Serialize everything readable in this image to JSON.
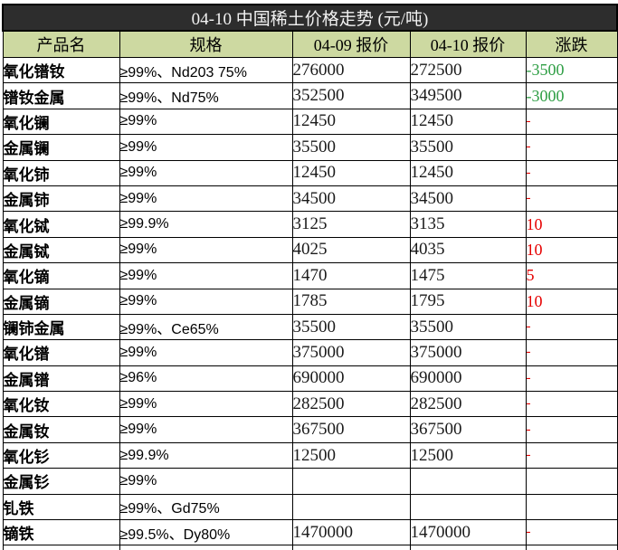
{
  "title": "04-10 中国稀土价格走势 (元/吨)",
  "columns": [
    "产品名",
    "规格",
    "04-09 报价",
    "04-10 报价",
    "涨跌"
  ],
  "rows": [
    {
      "name": "氧化镨钕",
      "spec": "≥99%、Nd203 75%",
      "price_0409": "276000",
      "price_0410": "272500",
      "change": "-3500",
      "direction": "down"
    },
    {
      "name": "镨钕金属",
      "spec": "≥99%、Nd75%",
      "price_0409": "352500",
      "price_0410": "349500",
      "change": "-3000",
      "direction": "down"
    },
    {
      "name": "氧化镧",
      "spec": "≥99%",
      "price_0409": "12450",
      "price_0410": "12450",
      "change": "-",
      "direction": "flat"
    },
    {
      "name": "金属镧",
      "spec": "≥99%",
      "price_0409": "35500",
      "price_0410": "35500",
      "change": "-",
      "direction": "flat"
    },
    {
      "name": "氧化铈",
      "spec": "≥99%",
      "price_0409": "12450",
      "price_0410": "12450",
      "change": "-",
      "direction": "flat"
    },
    {
      "name": "金属铈",
      "spec": "≥99%",
      "price_0409": "34500",
      "price_0410": "34500",
      "change": "-",
      "direction": "flat"
    },
    {
      "name": "氧化铽",
      "spec": "≥99.9%",
      "price_0409": "3125",
      "price_0410": "3135",
      "change": "10",
      "direction": "up"
    },
    {
      "name": "金属铽",
      "spec": "≥99%",
      "price_0409": "4025",
      "price_0410": "4035",
      "change": "10",
      "direction": "up"
    },
    {
      "name": "氧化镝",
      "spec": "≥99%",
      "price_0409": "1470",
      "price_0410": "1475",
      "change": "5",
      "direction": "up"
    },
    {
      "name": "金属镝",
      "spec": "≥99%",
      "price_0409": "1785",
      "price_0410": "1795",
      "change": "10",
      "direction": "up"
    },
    {
      "name": "镧铈金属",
      "spec": "≥99%、Ce65%",
      "price_0409": "35500",
      "price_0410": "35500",
      "change": "-",
      "direction": "flat"
    },
    {
      "name": "氧化镨",
      "spec": "≥99%",
      "price_0409": "375000",
      "price_0410": "375000",
      "change": "-",
      "direction": "flat"
    },
    {
      "name": "金属镨",
      "spec": "≥96%",
      "price_0409": "690000",
      "price_0410": "690000",
      "change": "-",
      "direction": "flat"
    },
    {
      "name": "氧化钕",
      "spec": "≥99%",
      "price_0409": "282500",
      "price_0410": "282500",
      "change": "-",
      "direction": "flat"
    },
    {
      "name": "金属钕",
      "spec": "≥99%",
      "price_0409": "367500",
      "price_0410": "367500",
      "change": "-",
      "direction": "flat"
    },
    {
      "name": "氧化钐",
      "spec": "≥99.9%",
      "price_0409": "12500",
      "price_0410": "12500",
      "change": "-",
      "direction": "flat"
    },
    {
      "name": "金属钐",
      "spec": "≥99%",
      "price_0409": "",
      "price_0410": "",
      "change": "",
      "direction": "none"
    },
    {
      "name": "钆铁",
      "spec": "≥99%、Gd75%",
      "price_0409": "",
      "price_0410": "",
      "change": "",
      "direction": "none"
    },
    {
      "name": "镝铁",
      "spec": "≥99.5%、Dy80%",
      "price_0409": "1470000",
      "price_0410": "1470000",
      "change": "-",
      "direction": "flat"
    }
  ],
  "colors": {
    "title_bg": "#2d2d2d",
    "title_fg": "#f2f2f2",
    "header_bg": "#cdd9a1",
    "up_red": "#e60000",
    "down_green": "#2e9e44",
    "flat_dash_red": "#e60000",
    "border": "#000000"
  }
}
